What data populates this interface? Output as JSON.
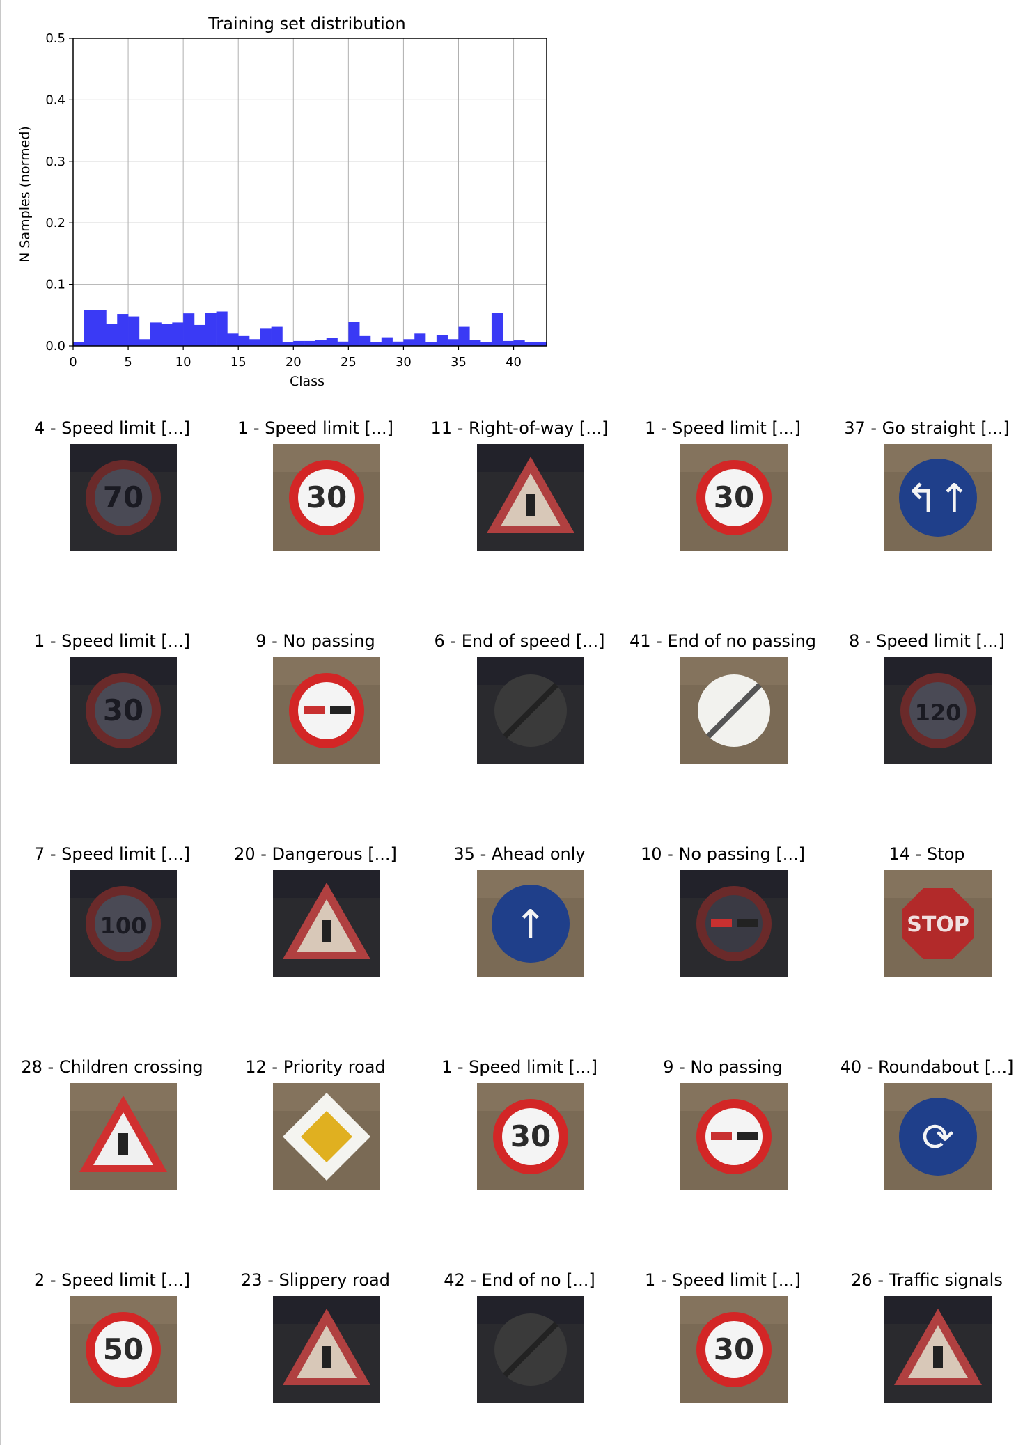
{
  "chart_data": {
    "type": "bar",
    "title": "Training set distribution",
    "xlabel": "Class",
    "ylabel": "N Samples (normed)",
    "xlim": [
      0,
      43
    ],
    "ylim": [
      0,
      0.5
    ],
    "xticks": [
      "0",
      "5",
      "10",
      "15",
      "20",
      "25",
      "30",
      "35",
      "40"
    ],
    "yticks": [
      "0.0",
      "0.1",
      "0.2",
      "0.3",
      "0.4",
      "0.5"
    ],
    "grid": true,
    "bar_color": "#3a3af5",
    "categories": [
      0,
      1,
      2,
      3,
      4,
      5,
      6,
      7,
      8,
      9,
      10,
      11,
      12,
      13,
      14,
      15,
      16,
      17,
      18,
      19,
      20,
      21,
      22,
      23,
      24,
      25,
      26,
      27,
      28,
      29,
      30,
      31,
      32,
      33,
      34,
      35,
      36,
      37,
      38,
      39,
      40,
      41,
      42
    ],
    "values": [
      0.006,
      0.058,
      0.058,
      0.036,
      0.052,
      0.048,
      0.011,
      0.038,
      0.036,
      0.038,
      0.053,
      0.034,
      0.054,
      0.056,
      0.02,
      0.016,
      0.011,
      0.029,
      0.031,
      0.006,
      0.008,
      0.008,
      0.01,
      0.013,
      0.007,
      0.039,
      0.016,
      0.006,
      0.014,
      0.007,
      0.011,
      0.02,
      0.006,
      0.017,
      0.011,
      0.031,
      0.01,
      0.006,
      0.054,
      0.008,
      0.009,
      0.006,
      0.006
    ]
  },
  "samples": [
    {
      "label": "4 - Speed limit [...]",
      "kind": "speed",
      "text": "70",
      "dark": true
    },
    {
      "label": "1 - Speed limit [...]",
      "kind": "speed",
      "text": "30",
      "dark": false
    },
    {
      "label": "11 - Right-of-way [...]",
      "kind": "triangle",
      "text": "",
      "dark": true
    },
    {
      "label": "1 - Speed limit [...]",
      "kind": "speed",
      "text": "30",
      "dark": false
    },
    {
      "label": "37 - Go straight [...]",
      "kind": "blue",
      "text": "↰↑",
      "dark": false
    },
    {
      "label": "1 - Speed limit [...]",
      "kind": "speed",
      "text": "30",
      "dark": true
    },
    {
      "label": "9 - No passing",
      "kind": "nopass",
      "text": "",
      "dark": false
    },
    {
      "label": "6 - End of speed [...]",
      "kind": "end",
      "text": "",
      "dark": true
    },
    {
      "label": "41 - End of no passing",
      "kind": "end",
      "text": "",
      "dark": false
    },
    {
      "label": "8 - Speed limit [...]",
      "kind": "speed",
      "text": "120",
      "dark": true
    },
    {
      "label": "7 - Speed limit [...]",
      "kind": "speed",
      "text": "100",
      "dark": true
    },
    {
      "label": "20 - Dangerous [...]",
      "kind": "triangle",
      "text": "",
      "dark": true
    },
    {
      "label": "35 - Ahead only",
      "kind": "blue",
      "text": "↑",
      "dark": false
    },
    {
      "label": "10 - No passing [...]",
      "kind": "nopass",
      "text": "",
      "dark": true
    },
    {
      "label": "14 - Stop",
      "kind": "stop",
      "text": "STOP",
      "dark": false
    },
    {
      "label": "28 - Children crossing",
      "kind": "triangle",
      "text": "",
      "dark": false
    },
    {
      "label": "12 - Priority road",
      "kind": "diamond",
      "text": "",
      "dark": false
    },
    {
      "label": "1 - Speed limit [...]",
      "kind": "speed",
      "text": "30",
      "dark": false
    },
    {
      "label": "9 - No passing",
      "kind": "nopass",
      "text": "",
      "dark": false
    },
    {
      "label": "40 - Roundabout [...]",
      "kind": "blue",
      "text": "⟳",
      "dark": false
    },
    {
      "label": "2 - Speed limit [...]",
      "kind": "speed",
      "text": "50",
      "dark": false
    },
    {
      "label": "23 - Slippery road",
      "kind": "triangle",
      "text": "",
      "dark": true
    },
    {
      "label": "42 - End of no [...]",
      "kind": "end",
      "text": "",
      "dark": true
    },
    {
      "label": "1 - Speed limit [...]",
      "kind": "speed",
      "text": "30",
      "dark": false
    },
    {
      "label": "26 - Traffic signals",
      "kind": "triangle",
      "text": "",
      "dark": true
    }
  ]
}
